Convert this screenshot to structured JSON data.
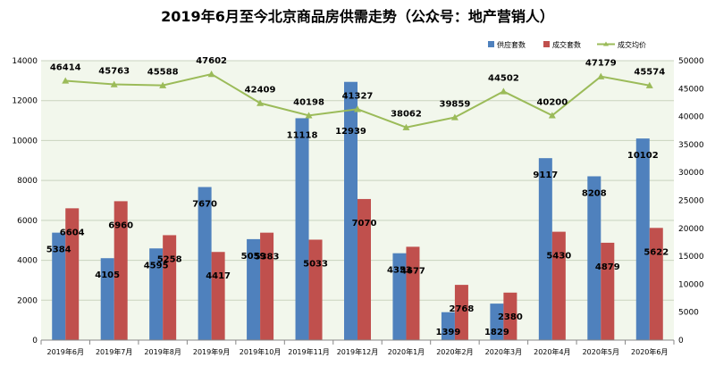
{
  "chart_data": {
    "type": "bar",
    "title": "2019年6月至今北京商品房供需走势（公众号：地产营销人）",
    "categories": [
      "2019年6月",
      "2019年7月",
      "2019年8月",
      "2019年9月",
      "2019年10月",
      "2019年11月",
      "2019年12月",
      "2020年1月",
      "2020年2月",
      "2020年3月",
      "2020年4月",
      "2020年5月",
      "2020年6月"
    ],
    "series": [
      {
        "name": "供应套数",
        "type": "bar",
        "axis": "left",
        "color": "#4F81BD",
        "values": [
          5384,
          4105,
          4595,
          7670,
          5059,
          11118,
          12939,
          4353,
          1399,
          1829,
          9117,
          8208,
          10102
        ]
      },
      {
        "name": "成交套数",
        "type": "bar",
        "axis": "left",
        "color": "#C0504D",
        "values": [
          6604,
          6960,
          5258,
          4417,
          5383,
          5033,
          7070,
          4677,
          2768,
          2380,
          5430,
          4879,
          5622
        ]
      },
      {
        "name": "成交均价",
        "type": "line",
        "axis": "right",
        "color": "#9BBB59",
        "values": [
          46414,
          45763,
          45588,
          47602,
          42409,
          40198,
          41327,
          38062,
          39859,
          44502,
          40200,
          47179,
          45574
        ]
      }
    ],
    "ylim_left": [
      0,
      14000
    ],
    "ylim_right": [
      0,
      50000
    ],
    "yticks_left": [
      "0",
      "2000",
      "4000",
      "6000",
      "8000",
      "10000",
      "12000",
      "14000"
    ],
    "yticks_right": [
      "0",
      "5000",
      "10000",
      "15000",
      "20000",
      "25000",
      "30000",
      "35000",
      "40000",
      "45000",
      "50000"
    ],
    "grid": true,
    "legend_position": "top-right",
    "background": "#ffffff",
    "plot_background": "#f2f7ec",
    "gridline_color": "#c9d3bf"
  }
}
